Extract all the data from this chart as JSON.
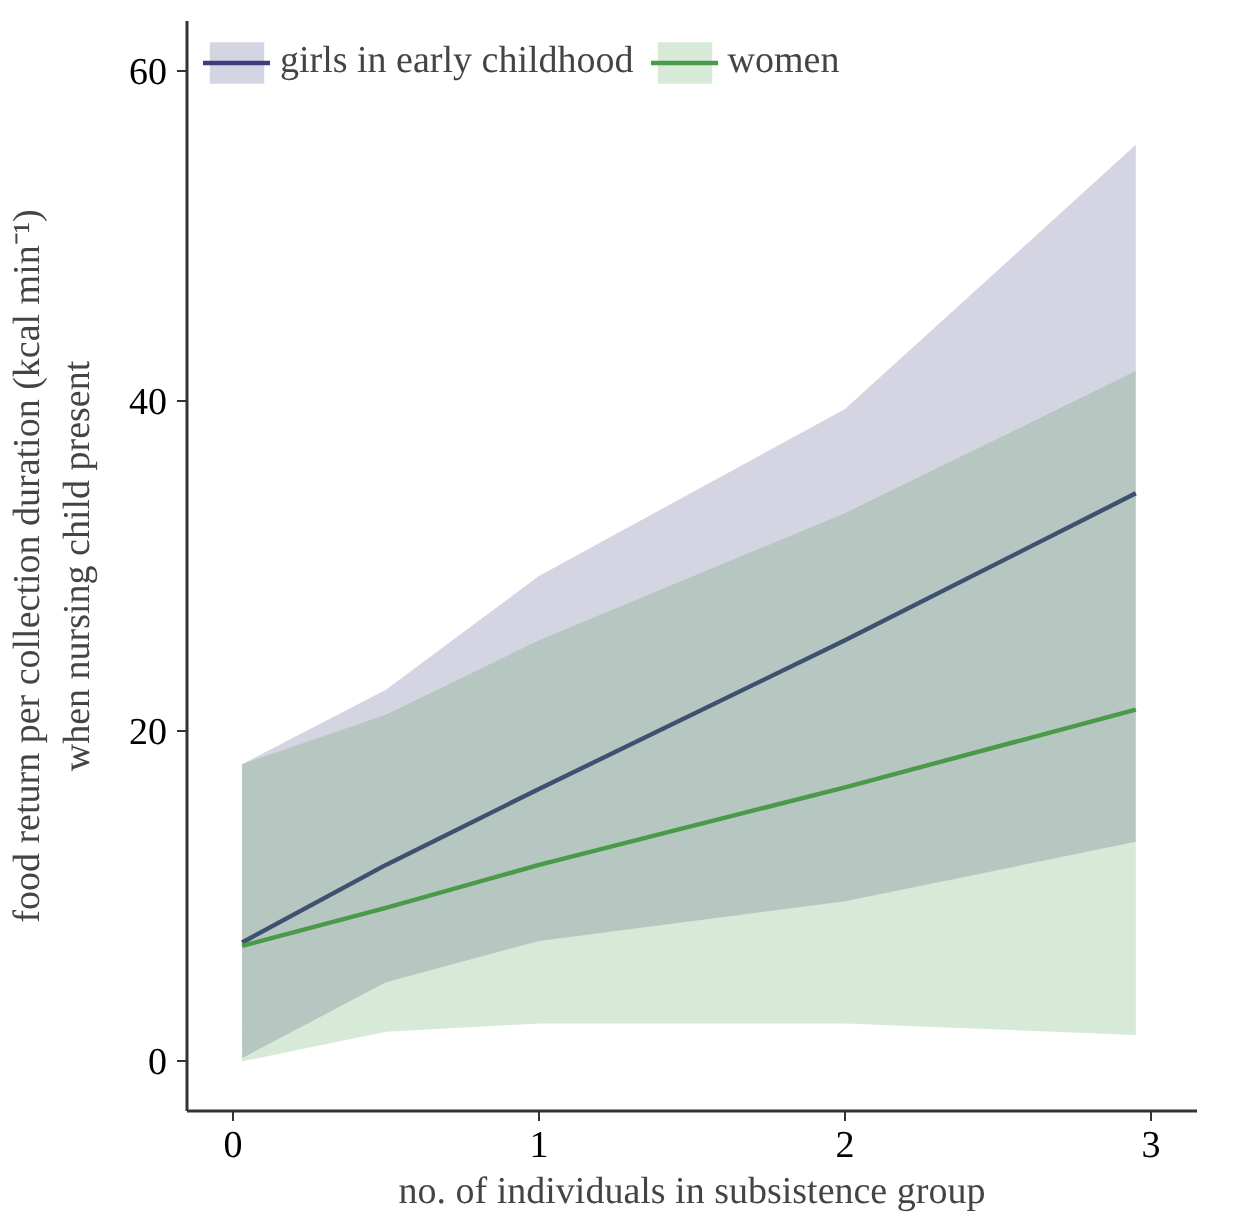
{
  "chart_data": {
    "type": "line",
    "xlabel": "no. of individuals in subsistence group",
    "ylabel": "food return per collection duration (kcal min⁻¹)\nwhen nursing child present",
    "x": [
      0.03,
      0.5,
      1,
      2,
      2.95
    ],
    "series": [
      {
        "name": "girls in early childhood",
        "color": "#3d3d7c",
        "values": [
          7.2,
          11.9,
          16.5,
          25.5,
          34.4
        ],
        "lower": [
          0.2,
          4.8,
          7.3,
          9.7,
          13.3
        ],
        "upper": [
          18,
          22.5,
          29.4,
          39.5,
          55.5
        ]
      },
      {
        "name": "women",
        "color": "#4a9a4a",
        "values": [
          7.0,
          9.3,
          11.9,
          16.6,
          21.3
        ],
        "lower": [
          0,
          1.8,
          2.3,
          2.3,
          1.6
        ],
        "upper": [
          18,
          21,
          25.5,
          33.2,
          41.8
        ]
      }
    ],
    "xlim": [
      -0.15,
      3.15
    ],
    "ylim": [
      -3,
      63
    ],
    "xticks": [
      0,
      1,
      2,
      3
    ],
    "yticks": [
      0,
      20,
      40,
      60
    ],
    "grid": false,
    "legend": "top left",
    "line_style": "solid",
    "marker": "none"
  }
}
